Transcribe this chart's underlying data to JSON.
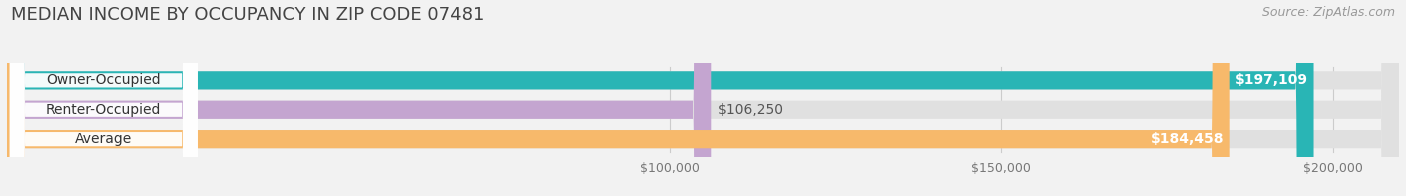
{
  "title": "MEDIAN INCOME BY OCCUPANCY IN ZIP CODE 07481",
  "source": "Source: ZipAtlas.com",
  "categories": [
    "Owner-Occupied",
    "Renter-Occupied",
    "Average"
  ],
  "values": [
    197109,
    106250,
    184458
  ],
  "bar_colors": [
    "#29b5b5",
    "#c4a5d0",
    "#f7b96b"
  ],
  "background_color": "#f2f2f2",
  "bar_bg_color": "#e0e0e0",
  "xmin": 0,
  "xmax": 210000,
  "xticks": [
    100000,
    150000,
    200000
  ],
  "xlabels": [
    "$100,000",
    "$150,000",
    "$200,000"
  ],
  "title_fontsize": 13,
  "source_fontsize": 9,
  "label_fontsize": 10,
  "value_fontsize": 10,
  "bar_height": 0.62
}
